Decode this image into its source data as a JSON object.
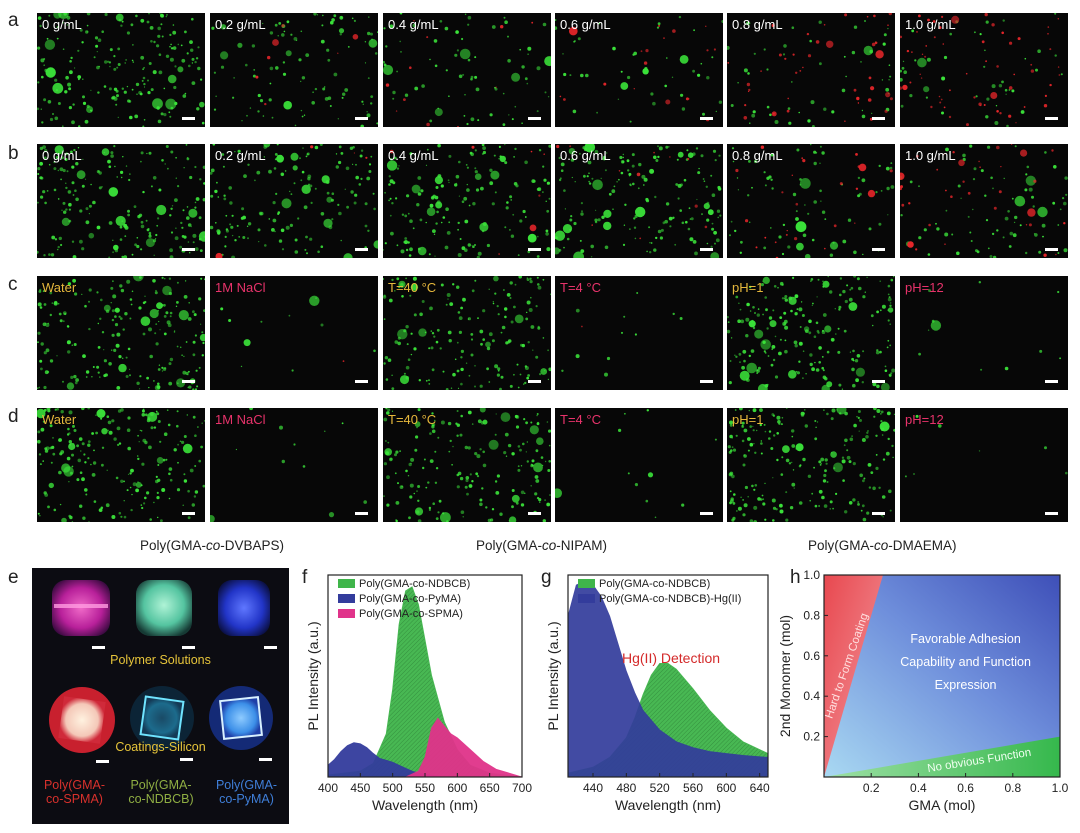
{
  "panel_labels": {
    "a": "a",
    "b": "b",
    "c": "c",
    "d": "d",
    "e": "e",
    "f": "f",
    "g": "g",
    "h": "h"
  },
  "microscopy": {
    "rows": [
      {
        "label": "a",
        "captions": [
          "0 g/mL",
          "0.2 g/mL",
          "0.4 g/mL",
          "0.6 g/mL",
          "0.8 g/mL",
          "1.0 g/mL"
        ],
        "caption_colors": [
          "#ffffff",
          "#ffffff",
          "#ffffff",
          "#ffffff",
          "#ffffff",
          "#ffffff"
        ],
        "red_level": [
          0.0,
          0.1,
          0.15,
          0.25,
          0.6,
          0.85
        ],
        "green_level": [
          0.9,
          0.45,
          0.35,
          0.2,
          0.25,
          0.2
        ]
      },
      {
        "label": "b",
        "captions": [
          "0 g/mL",
          "0.2 g/mL",
          "0.4 g/mL",
          "0.6 g/mL",
          "0.8 g/mL",
          "1.0 g/mL"
        ],
        "caption_colors": [
          "#ffffff",
          "#ffffff",
          "#ffffff",
          "#ffffff",
          "#ffffff",
          "#ffffff"
        ],
        "red_level": [
          0.0,
          0.05,
          0.1,
          0.15,
          0.35,
          0.5
        ],
        "green_level": [
          0.9,
          0.7,
          0.75,
          0.8,
          0.35,
          0.35
        ]
      },
      {
        "label": "c",
        "captions": [
          "Water",
          "1M NaCl",
          "T=40 °C",
          "T=4 °C",
          "pH=1",
          "pH=12"
        ],
        "caption_colors": [
          "#e6b83c",
          "#e8336b",
          "#e6b83c",
          "#e8336b",
          "#e6b83c",
          "#e8336b"
        ],
        "red_level": [
          0,
          0.02,
          0,
          0.02,
          0,
          0
        ],
        "green_level": [
          0.95,
          0.05,
          0.8,
          0.05,
          1.0,
          0.05
        ]
      },
      {
        "label": "d",
        "captions": [
          "Water",
          "1M NaCl",
          "T=40 °C",
          "T=4 °C",
          "pH=1",
          "pH=12"
        ],
        "caption_colors": [
          "#e6b83c",
          "#e8336b",
          "#e6b83c",
          "#e8336b",
          "#e6b83c",
          "#e8336b"
        ],
        "red_level": [
          0,
          0,
          0,
          0,
          0,
          0
        ],
        "green_level": [
          0.95,
          0.05,
          0.85,
          0.05,
          1.0,
          0.03
        ]
      }
    ],
    "group_captions": [
      {
        "prefix": "Poly(GMA-",
        "italic": "co",
        "suffix": "-DVBAPS)"
      },
      {
        "prefix": "Poly(GMA-",
        "italic": "co",
        "suffix": "-NIPAM)"
      },
      {
        "prefix": "Poly(GMA-",
        "italic": "co",
        "suffix": "-DMAEMA)"
      }
    ]
  },
  "photo_panel": {
    "solutions_label": "Polymer Solutions",
    "coatings_label": "Coatings-Silicon",
    "sample_labels": [
      {
        "line1": "Poly(GMA-",
        "line2": "co-SPMA)",
        "color": "#d9312c"
      },
      {
        "line1": "Poly(GMA-",
        "line2": "co-NDBCB)",
        "color": "#8fae43"
      },
      {
        "line1": "Poly(GMA-",
        "line2": "co-PyMA)",
        "color": "#3f7fd9"
      }
    ]
  },
  "chart_data": [
    {
      "type": "area",
      "panel": "f",
      "xlabel": "Wavelength (nm)",
      "ylabel": "PL Intensity (a.u.)",
      "xlim": [
        400,
        700
      ],
      "xticks": [
        400,
        450,
        500,
        550,
        600,
        650,
        700
      ],
      "ylim": [
        0,
        1
      ],
      "series": [
        {
          "name": "Poly(GMA-co-NDBCB)",
          "color": "#3fb54a",
          "x": [
            400,
            450,
            470,
            490,
            500,
            510,
            520,
            530,
            540,
            550,
            560,
            580,
            600,
            620,
            650,
            700
          ],
          "y": [
            0.01,
            0.03,
            0.07,
            0.22,
            0.45,
            0.78,
            0.95,
            0.97,
            0.88,
            0.7,
            0.52,
            0.28,
            0.14,
            0.06,
            0.02,
            0.0
          ]
        },
        {
          "name": "Poly(GMA-co-PyMA)",
          "color": "#333c9c",
          "x": [
            400,
            410,
            420,
            430,
            440,
            450,
            460,
            470,
            480,
            490,
            500,
            510,
            520,
            530,
            540,
            560,
            580,
            600,
            650,
            700
          ],
          "y": [
            0.06,
            0.09,
            0.13,
            0.16,
            0.175,
            0.17,
            0.15,
            0.12,
            0.095,
            0.085,
            0.075,
            0.06,
            0.045,
            0.03,
            0.02,
            0.01,
            0.0,
            0.0,
            0.0,
            0.0
          ]
        },
        {
          "name": "Poly(GMA-co-SPMA)",
          "color": "#e0338a",
          "x": [
            400,
            520,
            540,
            550,
            560,
            570,
            580,
            590,
            600,
            620,
            640,
            660,
            680,
            700
          ],
          "y": [
            0.0,
            0.0,
            0.03,
            0.1,
            0.25,
            0.3,
            0.26,
            0.22,
            0.2,
            0.14,
            0.08,
            0.04,
            0.02,
            0.0
          ]
        }
      ]
    },
    {
      "type": "area",
      "panel": "g",
      "xlabel": "Wavelength (nm)",
      "ylabel": "PL Intensity (a.u.)",
      "xlim": [
        410,
        650
      ],
      "xticks": [
        440,
        480,
        520,
        560,
        600,
        640
      ],
      "ylim": [
        0,
        1
      ],
      "annotation": "Hg(II) Detection",
      "series": [
        {
          "name": "Poly(GMA-co-NDBCB)",
          "color": "#3fb54a",
          "x": [
            410,
            440,
            460,
            480,
            490,
            500,
            510,
            520,
            530,
            540,
            560,
            580,
            600,
            620,
            650
          ],
          "y": [
            0.02,
            0.05,
            0.1,
            0.2,
            0.3,
            0.42,
            0.52,
            0.58,
            0.58,
            0.55,
            0.45,
            0.34,
            0.25,
            0.18,
            0.12
          ]
        },
        {
          "name": "Poly(GMA-co-NDBCB)-Hg(II)",
          "color": "#333c9c",
          "x": [
            410,
            420,
            430,
            440,
            450,
            460,
            470,
            480,
            490,
            500,
            520,
            540,
            560,
            580,
            600,
            620,
            650
          ],
          "y": [
            0.82,
            0.98,
            1.0,
            0.98,
            0.92,
            0.82,
            0.68,
            0.54,
            0.43,
            0.34,
            0.24,
            0.18,
            0.15,
            0.13,
            0.12,
            0.11,
            0.1
          ]
        }
      ]
    },
    {
      "type": "heatmap",
      "panel": "h",
      "xlabel": "GMA (mol)",
      "ylabel": "2nd Monomer (mol)",
      "xlim": [
        0,
        1.0
      ],
      "ylim": [
        0,
        1.0
      ],
      "xticks": [
        0.2,
        0.4,
        0.6,
        0.8,
        1.0
      ],
      "yticks": [
        0.2,
        0.4,
        0.6,
        0.8,
        1.0
      ],
      "regions": [
        {
          "label": "Hard to Form Coating",
          "color": "#e8484f"
        },
        {
          "label": "Favorable Adhesion Capability and Function Expression",
          "lines": [
            "Favorable Adhesion",
            "Capability and Function",
            "Expression"
          ],
          "color": "#5a6fd0"
        },
        {
          "label": "No obvious Function",
          "color": "#49c45c"
        }
      ]
    }
  ]
}
